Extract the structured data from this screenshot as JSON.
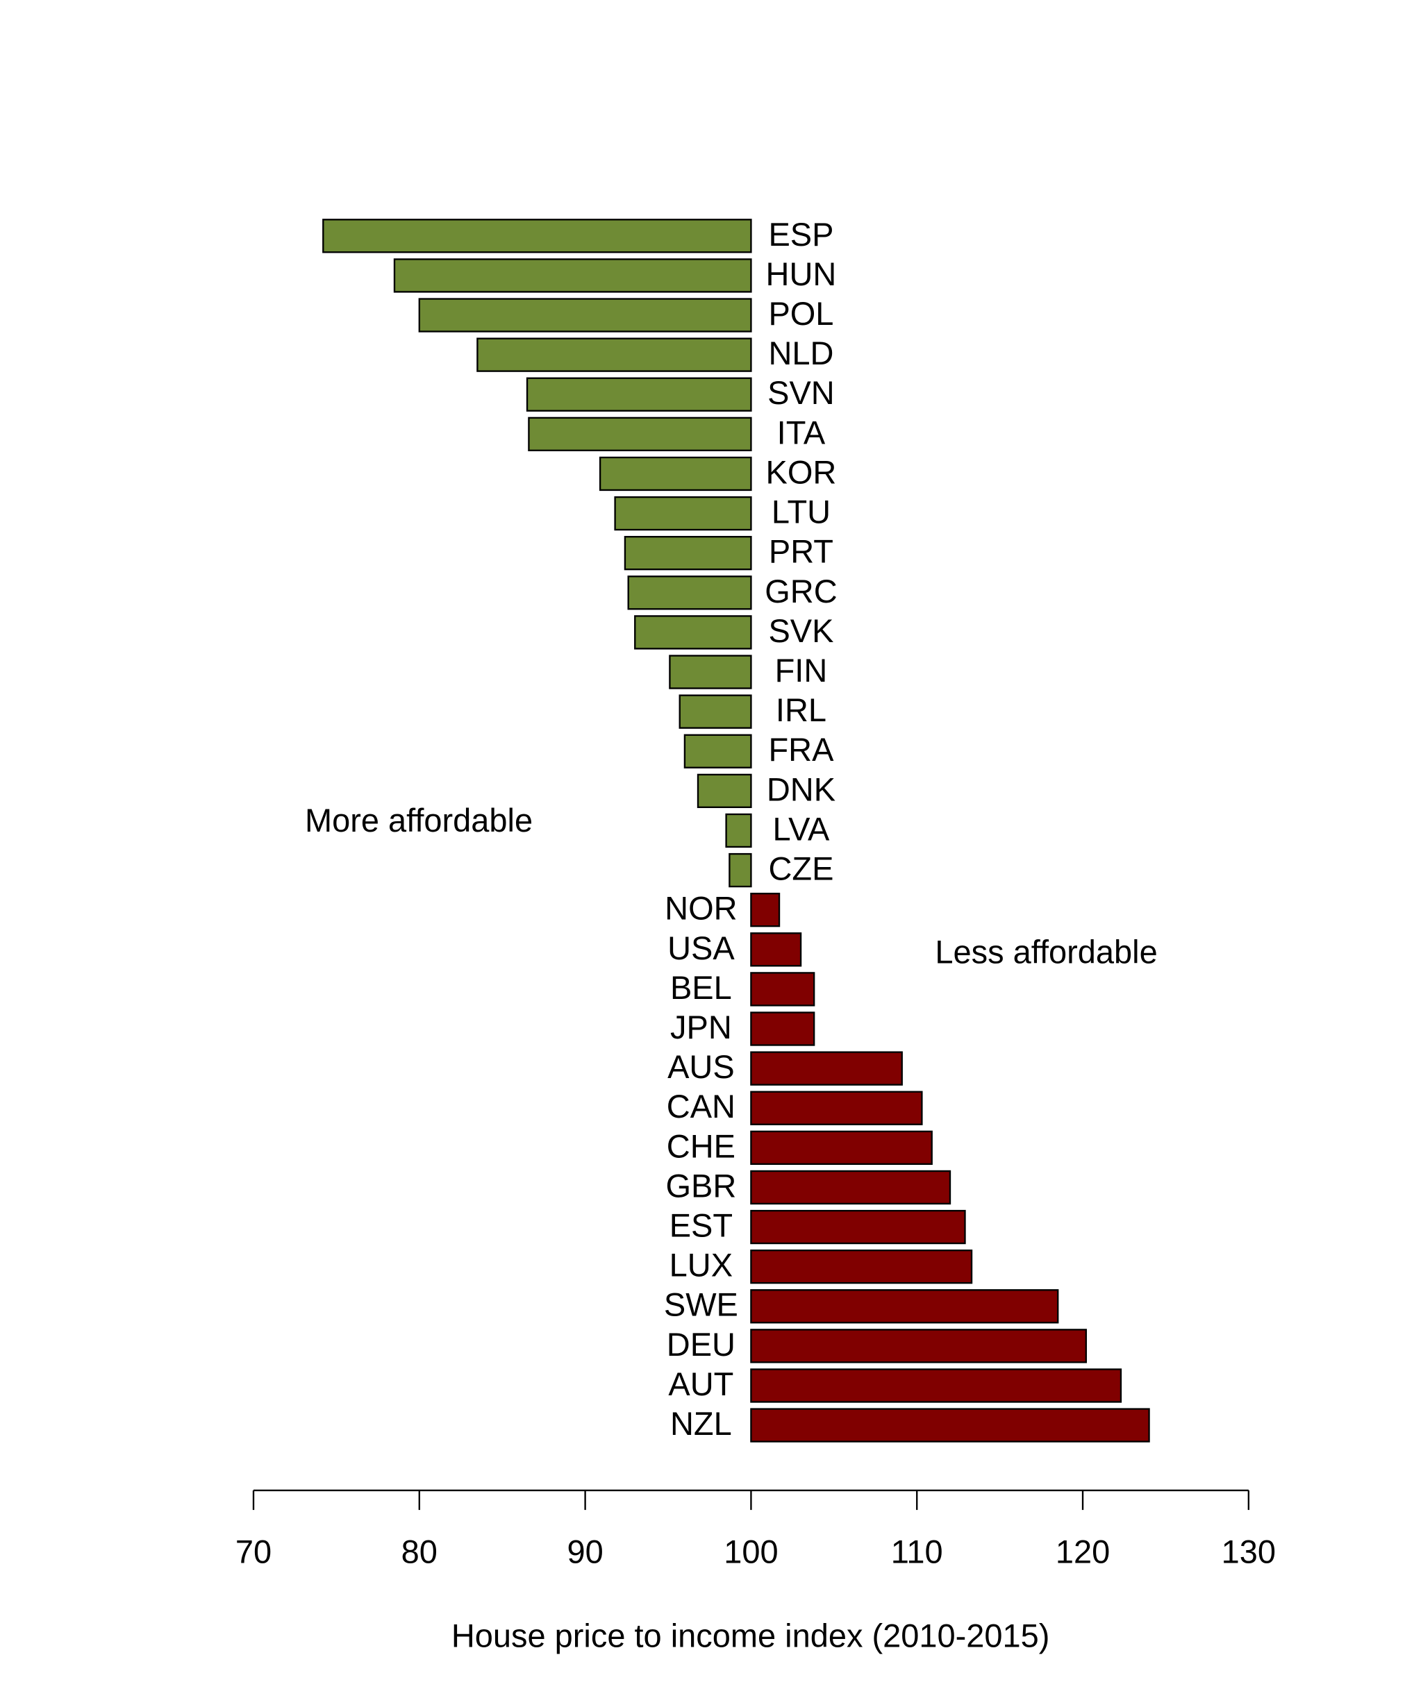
{
  "chart_data": {
    "type": "bar",
    "orientation": "horizontal",
    "base": 100,
    "categories": [
      "ESP",
      "HUN",
      "POL",
      "NLD",
      "SVN",
      "ITA",
      "KOR",
      "LTU",
      "PRT",
      "GRC",
      "SVK",
      "FIN",
      "IRL",
      "FRA",
      "DNK",
      "LVA",
      "CZE",
      "NOR",
      "USA",
      "BEL",
      "JPN",
      "AUS",
      "CAN",
      "CHE",
      "GBR",
      "EST",
      "LUX",
      "SWE",
      "DEU",
      "AUT",
      "NZL"
    ],
    "values": [
      74.2,
      78.5,
      80.0,
      83.5,
      86.5,
      86.6,
      90.9,
      91.8,
      92.4,
      92.6,
      93.0,
      95.1,
      95.7,
      96.0,
      96.8,
      98.5,
      98.7,
      101.7,
      103.0,
      103.8,
      103.8,
      109.1,
      110.3,
      110.9,
      112.0,
      112.9,
      113.3,
      118.5,
      120.2,
      122.3,
      124.0
    ],
    "colors": {
      "below": "#6f8b35",
      "above": "#800000"
    },
    "xlim": [
      70,
      130
    ],
    "xticks": [
      70,
      80,
      90,
      100,
      110,
      120,
      130
    ],
    "xlabel": "House price to income index (2010-2015)",
    "annotations": [
      "More affordable",
      "Less affordable"
    ]
  }
}
